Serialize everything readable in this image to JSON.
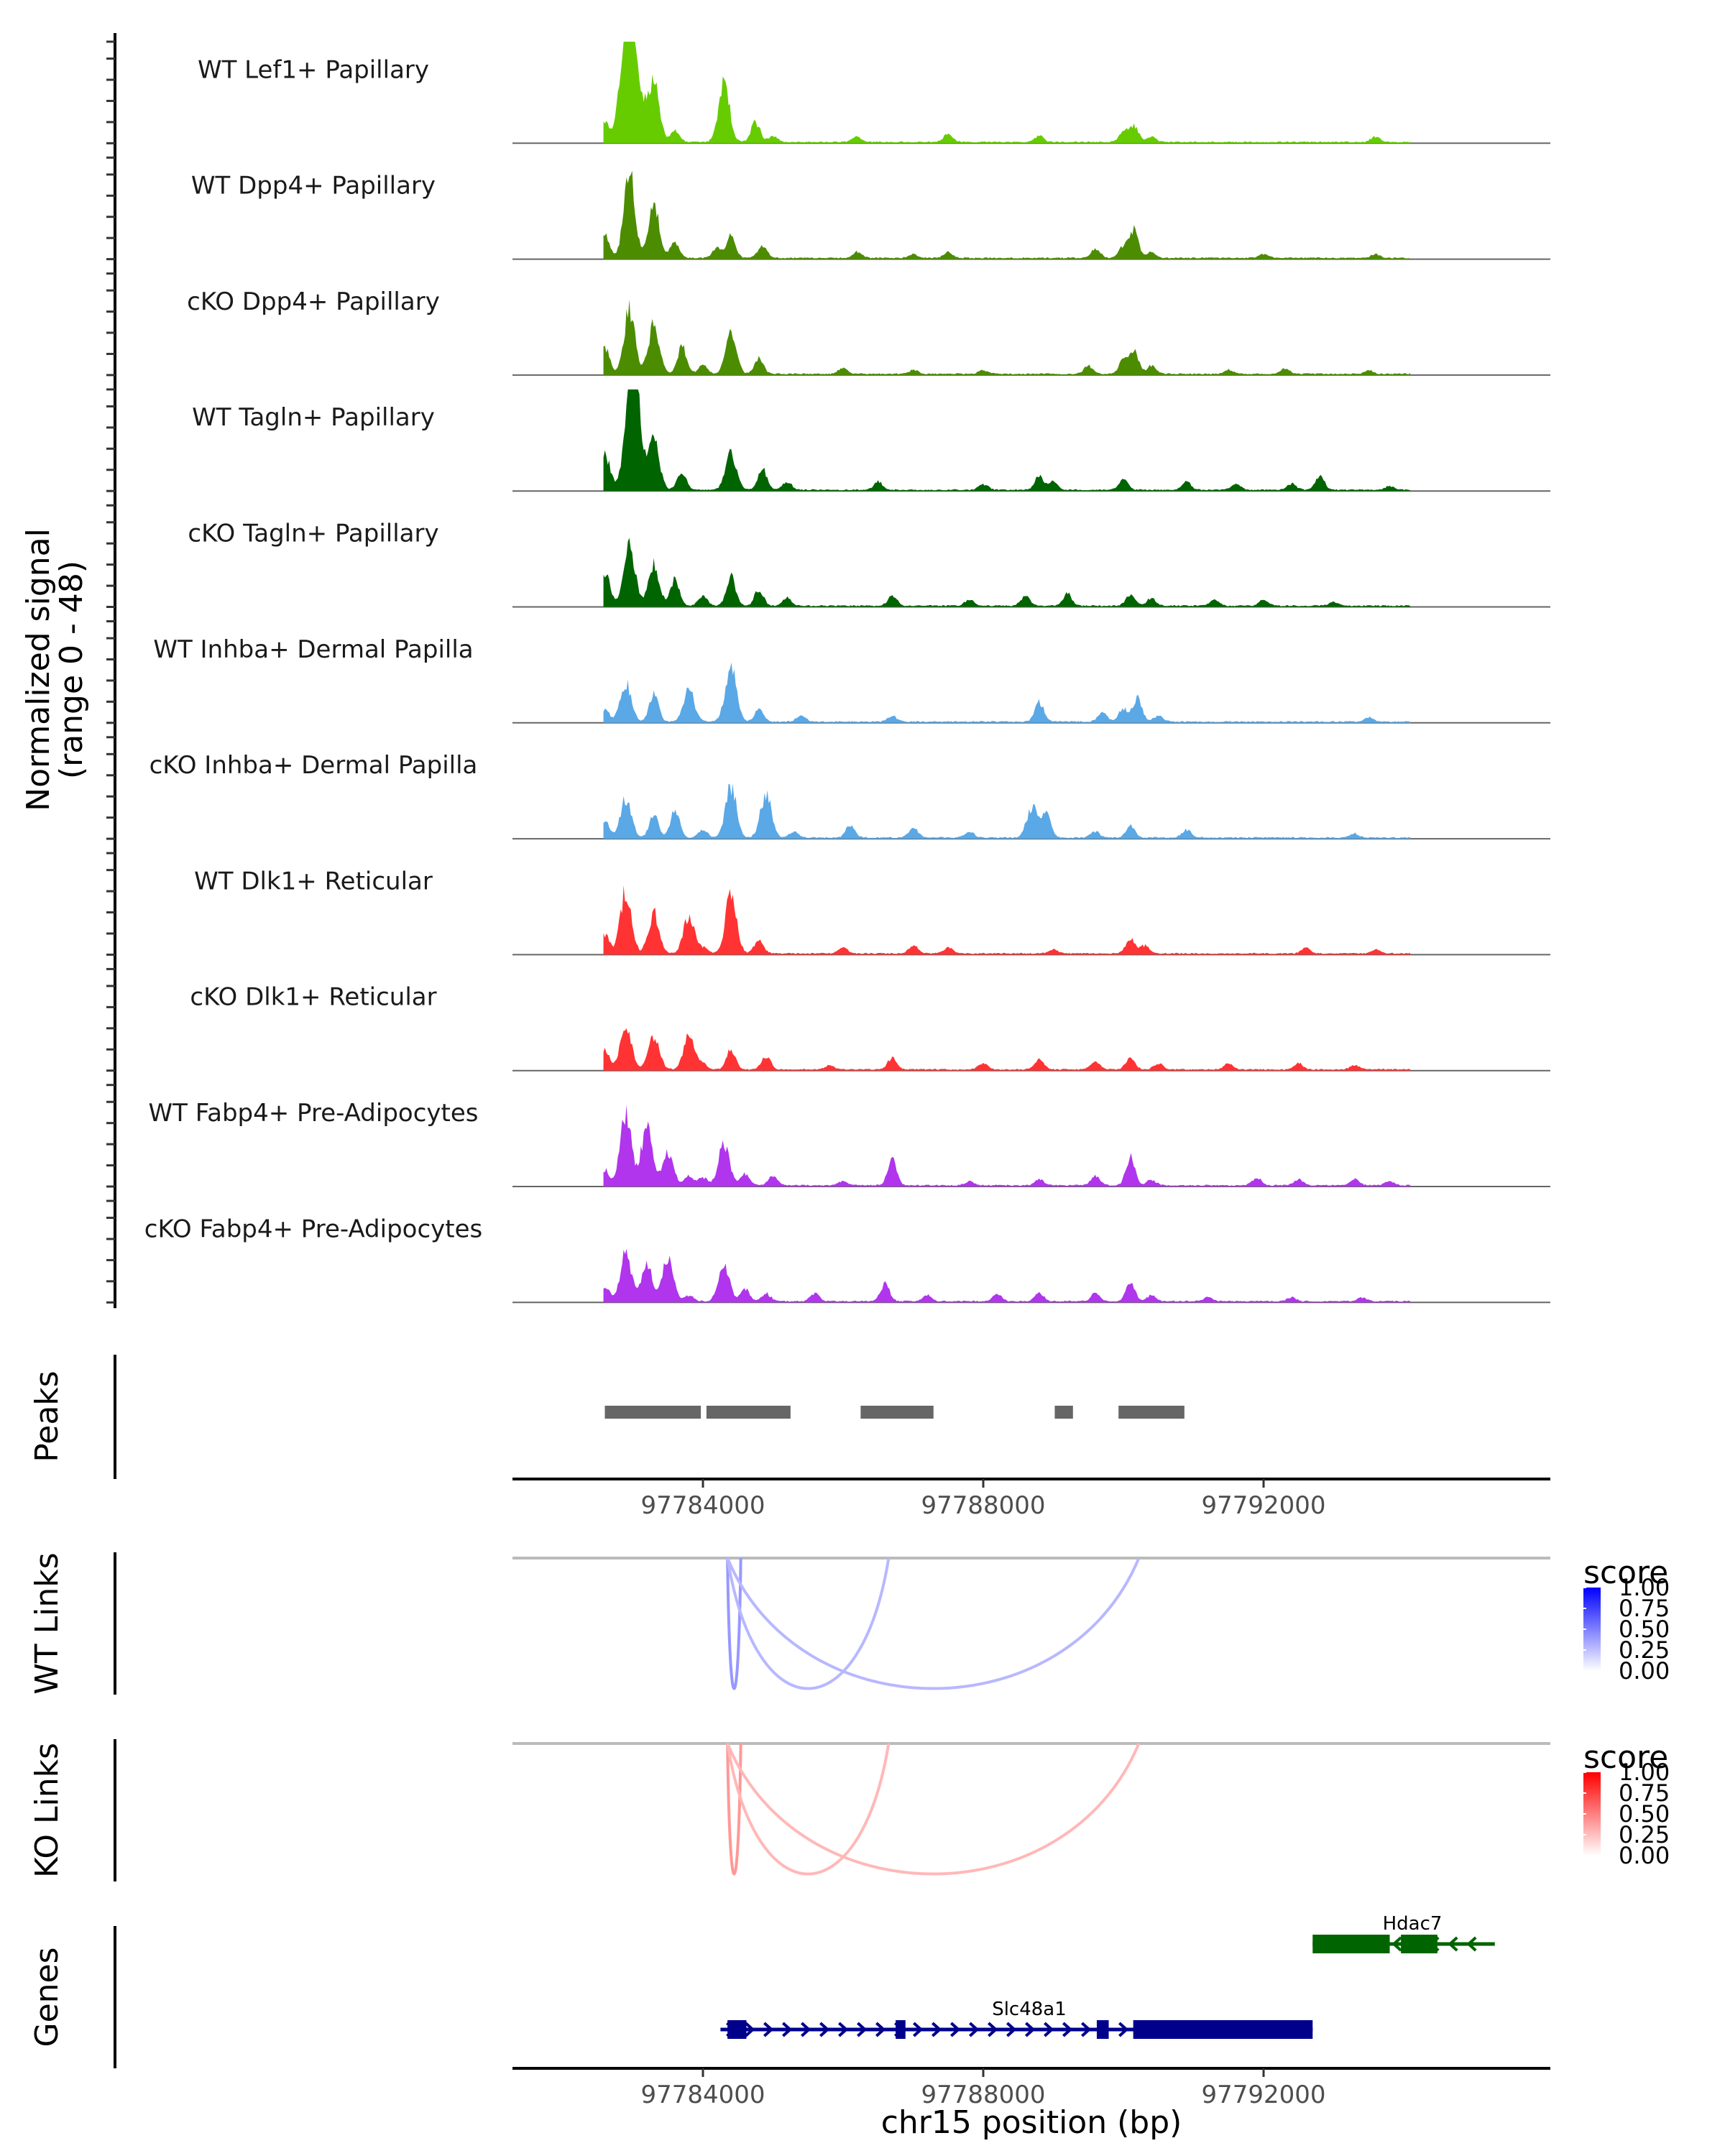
{
  "chart_data": {
    "type": "area",
    "title": "",
    "region": {
      "chrom": "chr15",
      "start": 97781282,
      "end": 97796092
    },
    "xlabel": "chr15 position (bp)",
    "x_ticks": [
      97784000,
      97788000,
      97792000
    ],
    "x_tick_labels": [
      "97784000",
      "97788000",
      "97792000"
    ],
    "coverage": {
      "ylabel_line1": "Normalized signal",
      "ylabel_line2": "(range 0 - 48)",
      "ylim": [
        0,
        48
      ],
      "y_ticks_per_track": [
        0,
        10,
        20,
        30,
        40,
        48
      ],
      "tracks": [
        {
          "name": "WT Lef1+ Papillary",
          "color": "#66CC00",
          "peaks": [
            [
              97782600,
              10
            ],
            [
              97782850,
              26
            ],
            [
              97782950,
              45
            ],
            [
              97783000,
              28
            ],
            [
              97783150,
              12
            ],
            [
              97783300,
              30
            ],
            [
              97783600,
              6
            ],
            [
              97784300,
              30
            ],
            [
              97784750,
              10
            ],
            [
              97785000,
              3
            ],
            [
              97786200,
              3
            ],
            [
              97787500,
              4
            ],
            [
              97788800,
              3
            ],
            [
              97790000,
              5
            ],
            [
              97790150,
              8
            ],
            [
              97790400,
              3
            ],
            [
              97793600,
              3
            ]
          ]
        },
        {
          "name": "WT Dpp4+ Papillary",
          "color": "#4C8C00",
          "peaks": [
            [
              97782600,
              12
            ],
            [
              97782950,
              44
            ],
            [
              97783300,
              27
            ],
            [
              97783600,
              8
            ],
            [
              97784200,
              5
            ],
            [
              97784400,
              11
            ],
            [
              97784850,
              6
            ],
            [
              97786200,
              3
            ],
            [
              97787000,
              2
            ],
            [
              97787500,
              3
            ],
            [
              97789600,
              5
            ],
            [
              97790000,
              6
            ],
            [
              97790150,
              14
            ],
            [
              97790400,
              3
            ],
            [
              97792000,
              2
            ],
            [
              97793600,
              2
            ]
          ]
        },
        {
          "name": "cKO Dpp4+ Papillary",
          "color": "#4C8C00",
          "peaks": [
            [
              97782600,
              14
            ],
            [
              97782950,
              32
            ],
            [
              97783300,
              25
            ],
            [
              97783700,
              14
            ],
            [
              97784000,
              5
            ],
            [
              97784400,
              20
            ],
            [
              97784800,
              8
            ],
            [
              97786000,
              3
            ],
            [
              97787000,
              2
            ],
            [
              97788000,
              2
            ],
            [
              97789500,
              4
            ],
            [
              97790000,
              7
            ],
            [
              97790150,
              12
            ],
            [
              97790400,
              4
            ],
            [
              97791500,
              2
            ],
            [
              97792300,
              3
            ],
            [
              97793500,
              2
            ]
          ]
        },
        {
          "name": "WT Tagln+ Papillary",
          "color": "#006400",
          "peaks": [
            [
              97782600,
              18
            ],
            [
              97782950,
              46
            ],
            [
              97783050,
              40
            ],
            [
              97783300,
              25
            ],
            [
              97783700,
              9
            ],
            [
              97784400,
              18
            ],
            [
              97784850,
              11
            ],
            [
              97785200,
              4
            ],
            [
              97786500,
              4
            ],
            [
              97788000,
              3
            ],
            [
              97788800,
              7
            ],
            [
              97789000,
              4
            ],
            [
              97790000,
              5
            ],
            [
              97790900,
              4
            ],
            [
              97791600,
              3
            ],
            [
              97792400,
              3
            ],
            [
              97792800,
              7
            ],
            [
              97793800,
              2
            ]
          ]
        },
        {
          "name": "cKO Tagln+ Papillary",
          "color": "#006400",
          "peaks": [
            [
              97782600,
              16
            ],
            [
              97782950,
              32
            ],
            [
              97783300,
              21
            ],
            [
              97783600,
              14
            ],
            [
              97784000,
              5
            ],
            [
              97784400,
              15
            ],
            [
              97784800,
              8
            ],
            [
              97785200,
              4
            ],
            [
              97786700,
              5
            ],
            [
              97787800,
              3
            ],
            [
              97788600,
              5
            ],
            [
              97789200,
              6
            ],
            [
              97790100,
              6
            ],
            [
              97790400,
              4
            ],
            [
              97791300,
              3
            ],
            [
              97792000,
              3
            ],
            [
              97793000,
              2
            ]
          ]
        },
        {
          "name": "WT Inhba+ Dermal Papilla",
          "color": "#5AA8E6",
          "peaks": [
            [
              97782600,
              6
            ],
            [
              97782900,
              20
            ],
            [
              97783300,
              14
            ],
            [
              97783800,
              16
            ],
            [
              97784400,
              30
            ],
            [
              97784800,
              6
            ],
            [
              97785400,
              3
            ],
            [
              97786700,
              3
            ],
            [
              97788800,
              10
            ],
            [
              97789700,
              5
            ],
            [
              97790000,
              7
            ],
            [
              97790200,
              12
            ],
            [
              97790500,
              3
            ],
            [
              97793500,
              2
            ]
          ]
        },
        {
          "name": "cKO Inhba+ Dermal Papilla",
          "color": "#5AA8E6",
          "peaks": [
            [
              97782600,
              8
            ],
            [
              97782900,
              20
            ],
            [
              97783300,
              12
            ],
            [
              97783600,
              14
            ],
            [
              97784000,
              4
            ],
            [
              97784400,
              26
            ],
            [
              97784900,
              22
            ],
            [
              97785300,
              3
            ],
            [
              97786100,
              6
            ],
            [
              97787000,
              5
            ],
            [
              97787800,
              3
            ],
            [
              97788700,
              16
            ],
            [
              97788900,
              12
            ],
            [
              97789600,
              3
            ],
            [
              97790100,
              6
            ],
            [
              97790900,
              4
            ],
            [
              97793300,
              2
            ]
          ]
        },
        {
          "name": "WT Dlk1+ Reticular",
          "color": "#FF3333",
          "peaks": [
            [
              97782600,
              10
            ],
            [
              97782900,
              32
            ],
            [
              97783300,
              20
            ],
            [
              97783800,
              19
            ],
            [
              97784000,
              3
            ],
            [
              97784400,
              30
            ],
            [
              97784800,
              7
            ],
            [
              97786000,
              3
            ],
            [
              97787000,
              4
            ],
            [
              97787500,
              3
            ],
            [
              97789000,
              2
            ],
            [
              97790100,
              8
            ],
            [
              97790300,
              4
            ],
            [
              97792600,
              3
            ],
            [
              97793600,
              2
            ]
          ]
        },
        {
          "name": "cKO Dlk1+ Reticular",
          "color": "#FF3333",
          "peaks": [
            [
              97782600,
              10
            ],
            [
              97782900,
              22
            ],
            [
              97783300,
              17
            ],
            [
              97783800,
              17
            ],
            [
              97784000,
              3
            ],
            [
              97784400,
              10
            ],
            [
              97784900,
              7
            ],
            [
              97785800,
              2
            ],
            [
              97786700,
              6
            ],
            [
              97788000,
              3
            ],
            [
              97788800,
              5
            ],
            [
              97789600,
              4
            ],
            [
              97790100,
              6
            ],
            [
              97790500,
              3
            ],
            [
              97791500,
              3
            ],
            [
              97792500,
              3
            ],
            [
              97793300,
              2
            ]
          ]
        },
        {
          "name": "WT Fabp4+ Pre-Adipocytes",
          "color": "#B035EC",
          "peaks": [
            [
              97782600,
              8
            ],
            [
              97782900,
              36
            ],
            [
              97783200,
              30
            ],
            [
              97783500,
              17
            ],
            [
              97783800,
              5
            ],
            [
              97784000,
              4
            ],
            [
              97784300,
              21
            ],
            [
              97784600,
              6
            ],
            [
              97785000,
              5
            ],
            [
              97786000,
              2
            ],
            [
              97786700,
              13
            ],
            [
              97787800,
              2
            ],
            [
              97788800,
              3
            ],
            [
              97789600,
              5
            ],
            [
              97790100,
              14
            ],
            [
              97790400,
              3
            ],
            [
              97791900,
              4
            ],
            [
              97792500,
              3
            ],
            [
              97793300,
              3
            ],
            [
              97793800,
              2
            ]
          ]
        },
        {
          "name": "cKO Fabp4+ Pre-Adipocytes",
          "color": "#B035EC",
          "peaks": [
            [
              97782600,
              8
            ],
            [
              97782900,
              25
            ],
            [
              97783200,
              18
            ],
            [
              97783500,
              22
            ],
            [
              97783800,
              3
            ],
            [
              97784300,
              18
            ],
            [
              97784600,
              6
            ],
            [
              97784900,
              4
            ],
            [
              97785600,
              4
            ],
            [
              97786600,
              9
            ],
            [
              97787200,
              3
            ],
            [
              97788200,
              4
            ],
            [
              97788800,
              4
            ],
            [
              97789600,
              4
            ],
            [
              97790100,
              9
            ],
            [
              97790400,
              3
            ],
            [
              97791200,
              2
            ],
            [
              97792400,
              2
            ],
            [
              97793400,
              2
            ]
          ]
        }
      ]
    },
    "peaks_track": {
      "title": "Peaks",
      "color": "#666666",
      "intervals": [
        [
          97782600,
          97783970
        ],
        [
          97784050,
          97785250
        ],
        [
          97786250,
          97787290
        ],
        [
          97789020,
          97789280
        ],
        [
          97789930,
          97790870
        ]
      ]
    },
    "links_tracks": [
      {
        "title": "WT Links",
        "legend_title": "score",
        "low_color": "#FFFFFF",
        "high_color": "#0000FF",
        "links": [
          {
            "start": 97784350,
            "end": 97784540,
            "score": 0.45
          },
          {
            "start": 97784350,
            "end": 97786650,
            "score": 0.25
          },
          {
            "start": 97784350,
            "end": 97790220,
            "score": 0.25
          },
          {
            "start": 97784540,
            "end": 97784350,
            "score": 0.45
          }
        ],
        "legend_ticks": [
          "1.00",
          "0.75",
          "0.50",
          "0.25",
          "0.00"
        ]
      },
      {
        "title": "KO Links",
        "legend_title": "score",
        "low_color": "#FFFFFF",
        "high_color": "#FF0000",
        "links": [
          {
            "start": 97784350,
            "end": 97784540,
            "score": 0.45
          },
          {
            "start": 97784350,
            "end": 97786650,
            "score": 0.25
          },
          {
            "start": 97784350,
            "end": 97790220,
            "score": 0.3
          }
        ],
        "legend_ticks": [
          "1.00",
          "0.75",
          "0.50",
          "0.25",
          "0.00"
        ]
      }
    ],
    "genes_track": {
      "title": "Genes",
      "genes": [
        {
          "name": "Hdac7",
          "strand": "-",
          "color": "#006400",
          "start": 97792700,
          "end": 97795300,
          "exons": [
            [
              97792700,
              97793800
            ],
            [
              97793960,
              97794480
            ]
          ]
        },
        {
          "name": "Slc48a1",
          "strand": "+",
          "color": "#00008B",
          "start": 97784250,
          "end": 97792700,
          "exons": [
            [
              97784350,
              97784620
            ],
            [
              97786750,
              97786890
            ],
            [
              97789620,
              97789790
            ],
            [
              97790140,
              97792700
            ]
          ]
        }
      ]
    }
  }
}
